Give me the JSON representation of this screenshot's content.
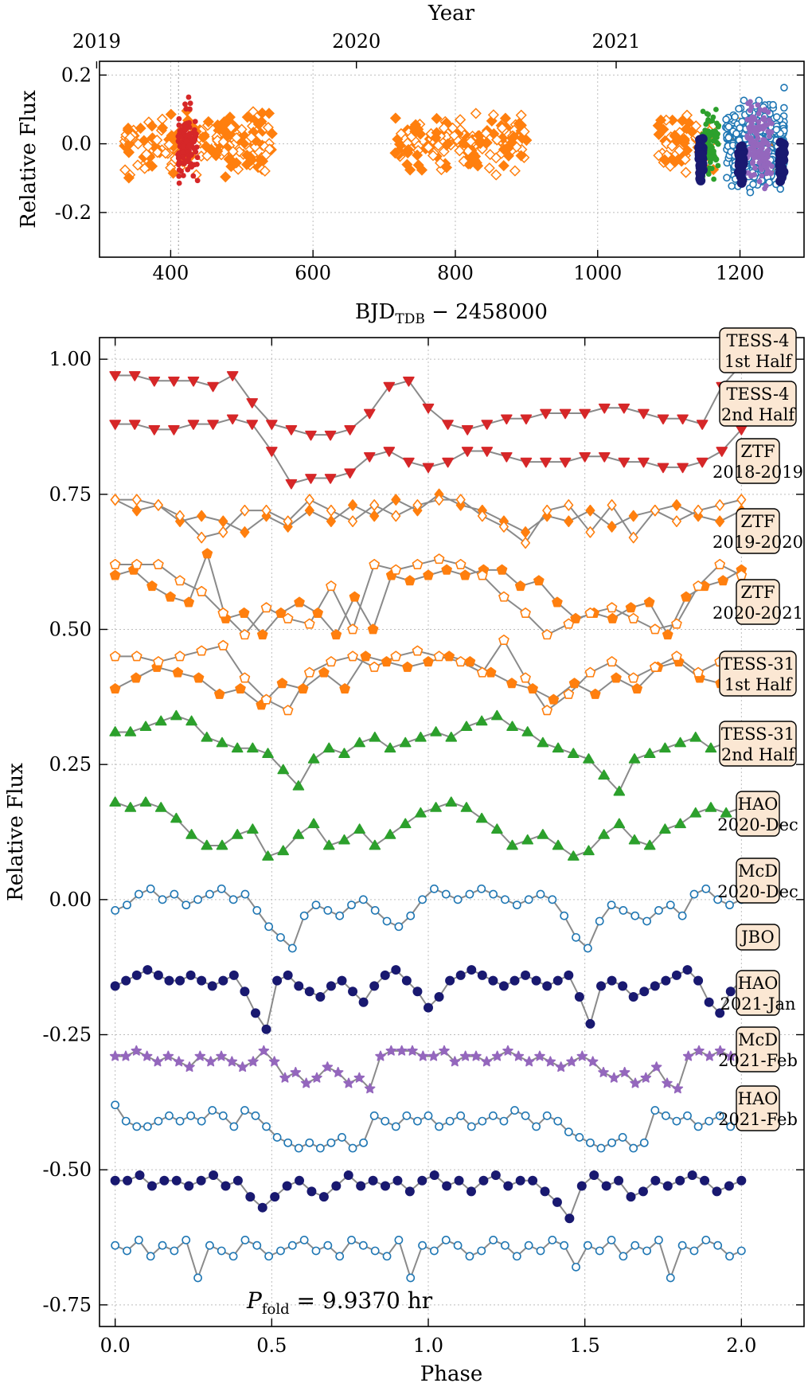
{
  "chart_data": [
    {
      "type": "scatter",
      "panel": "top",
      "top_axis_label": "Year",
      "top_ticks": [
        {
          "label": "2019",
          "x": 296
        },
        {
          "label": "2020",
          "x": 661
        },
        {
          "label": "2021",
          "x": 1026
        }
      ],
      "xlabel_main": "BJD",
      "xlabel_sub": "TDB",
      "xlabel_tail": " − 2458000",
      "ylabel": "Relative Flux",
      "xlim": [
        300,
        1290
      ],
      "ylim": [
        -0.33,
        0.24
      ],
      "xticks": [
        400,
        600,
        800,
        1000,
        1200
      ],
      "yticks": [
        0.2,
        0.0,
        -0.2
      ],
      "ytick_labels": [
        "0.2",
        "0.0",
        "-0.2"
      ],
      "vlines": [
        411
      ],
      "series": [
        {
          "name": "ZTF",
          "color": "#ff7f0e",
          "ranges": [
            [
              335,
              545
            ],
            [
              715,
              900
            ],
            [
              1085,
              1165
            ],
            [
              1190,
              1260
            ]
          ]
        },
        {
          "name": "TESS-4",
          "color": "#d62728",
          "ranges": [
            [
              410,
              438
            ]
          ]
        },
        {
          "name": "TESS-31",
          "color": "#2ca02c",
          "ranges": [
            [
              1145,
              1170
            ]
          ]
        },
        {
          "name": "HAO",
          "color": "#1f77b4",
          "ranges": [
            [
              1180,
              1262
            ]
          ]
        },
        {
          "name": "JBO",
          "color": "#9467bd",
          "ranges": [
            [
              1210,
              1245
            ]
          ]
        },
        {
          "name": "McD",
          "color": "#191970",
          "ranges": [
            [
              1142,
              1148
            ],
            [
              1198,
              1205
            ],
            [
              1256,
              1262
            ]
          ]
        }
      ]
    },
    {
      "type": "line",
      "panel": "bottom",
      "xlabel": "Phase",
      "ylabel": "Relative Flux",
      "xlim": [
        -0.05,
        2.2
      ],
      "ylim": [
        -0.79,
        1.04
      ],
      "xticks": [
        0.0,
        0.5,
        1.0,
        1.5,
        2.0
      ],
      "xtick_labels": [
        "0.0",
        "0.5",
        "1.0",
        "1.5",
        "2.0"
      ],
      "yticks": [
        1.0,
        0.75,
        0.5,
        0.25,
        0.0,
        -0.25,
        -0.5,
        -0.75
      ],
      "ytick_labels": [
        "1.00",
        "0.75",
        "0.50",
        "0.25",
        "0.00",
        "-0.25",
        "-0.50",
        "-0.75"
      ],
      "annotation_main": "P",
      "annotation_sub": "fold",
      "annotation_tail": " = 9.9370 hr",
      "series": [
        {
          "name": "TESS-4 1st Half",
          "label": [
            "TESS-4",
            "1st Half"
          ],
          "color": "#d62728",
          "marker": "tri_down",
          "filled": true,
          "values": [
            0.97,
            0.97,
            0.96,
            0.96,
            0.96,
            0.95,
            0.97,
            0.92,
            0.88,
            0.87,
            0.86,
            0.86,
            0.87,
            0.9,
            0.95,
            0.96,
            0.91,
            0.88,
            0.87,
            0.88,
            0.89,
            0.89,
            0.9,
            0.9,
            0.9,
            0.91,
            0.91,
            0.9,
            0.89,
            0.89,
            0.88,
            0.95,
            0.99
          ]
        },
        {
          "name": "TESS-4 2nd Half",
          "label": [
            "TESS-4",
            "2nd Half"
          ],
          "color": "#d62728",
          "marker": "tri_down",
          "filled": true,
          "values": [
            0.88,
            0.88,
            0.87,
            0.87,
            0.88,
            0.88,
            0.89,
            0.88,
            0.83,
            0.77,
            0.78,
            0.78,
            0.79,
            0.82,
            0.83,
            0.81,
            0.8,
            0.81,
            0.83,
            0.83,
            0.82,
            0.81,
            0.81,
            0.81,
            0.82,
            0.82,
            0.81,
            0.81,
            0.8,
            0.8,
            0.81,
            0.83,
            0.87
          ]
        },
        {
          "name": "ZTF 2018-2019 filled",
          "color": "#ff7f0e",
          "marker": "diamond",
          "filled": true,
          "values": [
            0.74,
            0.72,
            0.73,
            0.7,
            0.71,
            0.7,
            0.68,
            0.71,
            0.69,
            0.72,
            0.7,
            0.73,
            0.71,
            0.74,
            0.72,
            0.75,
            0.73,
            0.72,
            0.7,
            0.68,
            0.71,
            0.7,
            0.72,
            0.69,
            0.71,
            0.72,
            0.73,
            0.71,
            0.7,
            0.72
          ]
        },
        {
          "name": "ZTF 2018-2019 open",
          "label": [
            "ZTF",
            "2018-2019"
          ],
          "color": "#ff7f0e",
          "marker": "diamond",
          "filled": false,
          "values": [
            0.74,
            0.74,
            0.73,
            0.71,
            0.67,
            0.68,
            0.72,
            0.72,
            0.7,
            0.74,
            0.72,
            0.7,
            0.73,
            0.71,
            0.73,
            0.74,
            0.74,
            0.71,
            0.69,
            0.66,
            0.72,
            0.73,
            0.68,
            0.73,
            0.67,
            0.72,
            0.7,
            0.72,
            0.73,
            0.74
          ]
        },
        {
          "name": "ZTF 2019-2020 filled",
          "color": "#ff7f0e",
          "marker": "pentagon",
          "filled": true,
          "values": [
            0.6,
            0.61,
            0.58,
            0.56,
            0.55,
            0.64,
            0.52,
            0.53,
            0.49,
            0.53,
            0.55,
            0.53,
            0.49,
            0.56,
            0.5,
            0.6,
            0.59,
            0.6,
            0.61,
            0.6,
            0.61,
            0.61,
            0.58,
            0.59,
            0.55,
            0.52,
            0.53,
            0.52,
            0.54,
            0.55,
            0.49,
            0.56,
            0.58,
            0.59,
            0.61
          ]
        },
        {
          "name": "ZTF 2019-2020 open",
          "label": [
            "ZTF",
            "2019-2020"
          ],
          "color": "#ff7f0e",
          "marker": "pentagon",
          "filled": false,
          "values": [
            0.62,
            0.62,
            0.62,
            0.59,
            0.57,
            0.53,
            0.49,
            0.54,
            0.52,
            0.51,
            0.58,
            0.5,
            0.62,
            0.61,
            0.62,
            0.63,
            0.62,
            0.6,
            0.56,
            0.53,
            0.49,
            0.51,
            0.53,
            0.54,
            0.52,
            0.5,
            0.51,
            0.58,
            0.62,
            0.6
          ]
        },
        {
          "name": "ZTF 2020-2021 filled",
          "color": "#ff7f0e",
          "marker": "pentagon",
          "filled": true,
          "values": [
            0.39,
            0.41,
            0.43,
            0.42,
            0.41,
            0.38,
            0.39,
            0.36,
            0.4,
            0.39,
            0.42,
            0.39,
            0.45,
            0.44,
            0.43,
            0.44,
            0.45,
            0.44,
            0.42,
            0.4,
            0.39,
            0.37,
            0.4,
            0.38,
            0.41,
            0.39,
            0.43,
            0.44,
            0.41,
            0.4,
            0.45
          ]
        },
        {
          "name": "ZTF 2020-2021 open",
          "label": [
            "ZTF",
            "2020-2021"
          ],
          "color": "#ff7f0e",
          "marker": "pentagon",
          "filled": false,
          "values": [
            0.45,
            0.45,
            0.44,
            0.45,
            0.46,
            0.47,
            0.41,
            0.37,
            0.35,
            0.42,
            0.44,
            0.45,
            0.43,
            0.45,
            0.46,
            0.45,
            0.44,
            0.42,
            0.48,
            0.41,
            0.35,
            0.38,
            0.42,
            0.44,
            0.41,
            0.43,
            0.45,
            0.42,
            0.44,
            0.45
          ]
        },
        {
          "name": "TESS-31 1st Half",
          "label": [
            "TESS-31",
            "1st Half"
          ],
          "color": "#2ca02c",
          "marker": "tri_up",
          "filled": true,
          "values": [
            0.31,
            0.31,
            0.32,
            0.33,
            0.34,
            0.33,
            0.3,
            0.29,
            0.28,
            0.28,
            0.27,
            0.24,
            0.21,
            0.26,
            0.28,
            0.27,
            0.29,
            0.3,
            0.28,
            0.29,
            0.3,
            0.31,
            0.3,
            0.32,
            0.33,
            0.34,
            0.32,
            0.31,
            0.29,
            0.28,
            0.27,
            0.26,
            0.23,
            0.2,
            0.26,
            0.27,
            0.28,
            0.29,
            0.3,
            0.28,
            0.29,
            0.31
          ]
        },
        {
          "name": "TESS-31 2nd Half",
          "label": [
            "TESS-31",
            "2nd Half"
          ],
          "color": "#2ca02c",
          "marker": "tri_up",
          "filled": true,
          "values": [
            0.18,
            0.17,
            0.18,
            0.17,
            0.15,
            0.12,
            0.1,
            0.1,
            0.12,
            0.13,
            0.08,
            0.09,
            0.12,
            0.14,
            0.1,
            0.11,
            0.13,
            0.1,
            0.12,
            0.14,
            0.16,
            0.17,
            0.18,
            0.17,
            0.15,
            0.13,
            0.1,
            0.11,
            0.12,
            0.1,
            0.08,
            0.09,
            0.12,
            0.14,
            0.11,
            0.1,
            0.13,
            0.14,
            0.16,
            0.17,
            0.16,
            0.17
          ]
        },
        {
          "name": "HAO 2020-Dec",
          "label": [
            "HAO",
            "2020-Dec"
          ],
          "color": "#1f77b4",
          "marker": "circle",
          "filled": false,
          "values": [
            -0.02,
            -0.01,
            0.01,
            0.02,
            0.0,
            0.01,
            -0.01,
            0.0,
            0.01,
            0.02,
            0.0,
            0.01,
            -0.02,
            -0.05,
            -0.07,
            -0.09,
            -0.03,
            -0.01,
            -0.02,
            -0.03,
            -0.01,
            0.0,
            -0.02,
            -0.04,
            -0.05,
            -0.03,
            0.0,
            0.02,
            0.01,
            0.0,
            0.01,
            0.02,
            0.01,
            0.0,
            -0.01,
            0.0,
            0.01,
            0.0,
            -0.03,
            -0.07,
            -0.09,
            -0.04,
            -0.01,
            -0.02,
            -0.03,
            -0.04,
            -0.02,
            -0.01,
            -0.03,
            0.01,
            0.02,
            0.0,
            -0.01,
            0.0
          ]
        },
        {
          "name": "McD 2020-Dec",
          "label": [
            "McD",
            "2020-Dec"
          ],
          "color": "#191970",
          "marker": "circle",
          "filled": true,
          "values": [
            -0.16,
            -0.15,
            -0.14,
            -0.13,
            -0.14,
            -0.15,
            -0.15,
            -0.14,
            -0.15,
            -0.16,
            -0.15,
            -0.14,
            -0.17,
            -0.21,
            -0.24,
            -0.15,
            -0.14,
            -0.16,
            -0.17,
            -0.18,
            -0.16,
            -0.15,
            -0.17,
            -0.19,
            -0.16,
            -0.14,
            -0.13,
            -0.15,
            -0.17,
            -0.2,
            -0.18,
            -0.15,
            -0.14,
            -0.13,
            -0.14,
            -0.15,
            -0.16,
            -0.15,
            -0.14,
            -0.15,
            -0.16,
            -0.15,
            -0.14,
            -0.18,
            -0.23,
            -0.16,
            -0.15,
            -0.16,
            -0.18,
            -0.17,
            -0.16,
            -0.15,
            -0.14,
            -0.13,
            -0.15,
            -0.19,
            -0.21,
            -0.17,
            -0.15
          ]
        },
        {
          "name": "JBO",
          "label": [
            "JBO"
          ],
          "color": "#9467bd",
          "marker": "star",
          "filled": true,
          "values": [
            -0.29,
            -0.29,
            -0.28,
            -0.29,
            -0.3,
            -0.29,
            -0.3,
            -0.31,
            -0.29,
            -0.3,
            -0.29,
            -0.3,
            -0.31,
            -0.3,
            -0.28,
            -0.3,
            -0.33,
            -0.32,
            -0.34,
            -0.33,
            -0.31,
            -0.32,
            -0.34,
            -0.33,
            -0.35,
            -0.29,
            -0.28,
            -0.28,
            -0.28,
            -0.29,
            -0.29,
            -0.28,
            -0.3,
            -0.29,
            -0.29,
            -0.3,
            -0.29,
            -0.28,
            -0.29,
            -0.3,
            -0.29,
            -0.3,
            -0.31,
            -0.3,
            -0.29,
            -0.3,
            -0.32,
            -0.33,
            -0.32,
            -0.34,
            -0.33,
            -0.31,
            -0.34,
            -0.35,
            -0.29,
            -0.28,
            -0.29,
            -0.28,
            -0.29,
            -0.28
          ]
        },
        {
          "name": "HAO 2021-Jan",
          "label": [
            "HAO",
            "2021-Jan"
          ],
          "color": "#1f77b4",
          "marker": "circle",
          "filled": false,
          "values": [
            -0.38,
            -0.41,
            -0.42,
            -0.42,
            -0.41,
            -0.4,
            -0.41,
            -0.4,
            -0.41,
            -0.39,
            -0.4,
            -0.42,
            -0.39,
            -0.4,
            -0.42,
            -0.44,
            -0.45,
            -0.46,
            -0.45,
            -0.46,
            -0.45,
            -0.44,
            -0.46,
            -0.45,
            -0.4,
            -0.41,
            -0.42,
            -0.4,
            -0.41,
            -0.4,
            -0.42,
            -0.41,
            -0.4,
            -0.42,
            -0.41,
            -0.4,
            -0.41,
            -0.39,
            -0.4,
            -0.42,
            -0.4,
            -0.41,
            -0.43,
            -0.44,
            -0.45,
            -0.46,
            -0.45,
            -0.44,
            -0.46,
            -0.45,
            -0.39,
            -0.4,
            -0.41,
            -0.4,
            -0.42,
            -0.41,
            -0.4,
            -0.42,
            -0.41
          ]
        },
        {
          "name": "McD 2021-Feb",
          "label": [
            "McD",
            "2021-Feb"
          ],
          "color": "#191970",
          "marker": "circle",
          "filled": true,
          "values": [
            -0.52,
            -0.52,
            -0.51,
            -0.53,
            -0.52,
            -0.52,
            -0.53,
            -0.52,
            -0.51,
            -0.53,
            -0.52,
            -0.55,
            -0.57,
            -0.55,
            -0.53,
            -0.52,
            -0.54,
            -0.55,
            -0.53,
            -0.51,
            -0.53,
            -0.52,
            -0.53,
            -0.52,
            -0.54,
            -0.52,
            -0.51,
            -0.53,
            -0.52,
            -0.54,
            -0.52,
            -0.51,
            -0.53,
            -0.52,
            -0.52,
            -0.54,
            -0.56,
            -0.59,
            -0.53,
            -0.51,
            -0.53,
            -0.52,
            -0.55,
            -0.54,
            -0.52,
            -0.53,
            -0.52,
            -0.51,
            -0.52,
            -0.54,
            -0.53,
            -0.52
          ]
        },
        {
          "name": "HAO 2021-Feb",
          "label": [
            "HAO",
            "2021-Feb"
          ],
          "color": "#1f77b4",
          "marker": "circle",
          "filled": false,
          "values": [
            -0.64,
            -0.65,
            -0.63,
            -0.66,
            -0.64,
            -0.65,
            -0.63,
            -0.7,
            -0.64,
            -0.65,
            -0.66,
            -0.63,
            -0.64,
            -0.66,
            -0.65,
            -0.64,
            -0.63,
            -0.65,
            -0.64,
            -0.66,
            -0.63,
            -0.64,
            -0.65,
            -0.66,
            -0.63,
            -0.7,
            -0.64,
            -0.65,
            -0.63,
            -0.64,
            -0.66,
            -0.65,
            -0.63,
            -0.64,
            -0.66,
            -0.64,
            -0.65,
            -0.63,
            -0.64,
            -0.68,
            -0.64,
            -0.65,
            -0.63,
            -0.66,
            -0.64,
            -0.65,
            -0.63,
            -0.7,
            -0.64,
            -0.65,
            -0.63,
            -0.64,
            -0.66,
            -0.65
          ]
        }
      ]
    }
  ]
}
